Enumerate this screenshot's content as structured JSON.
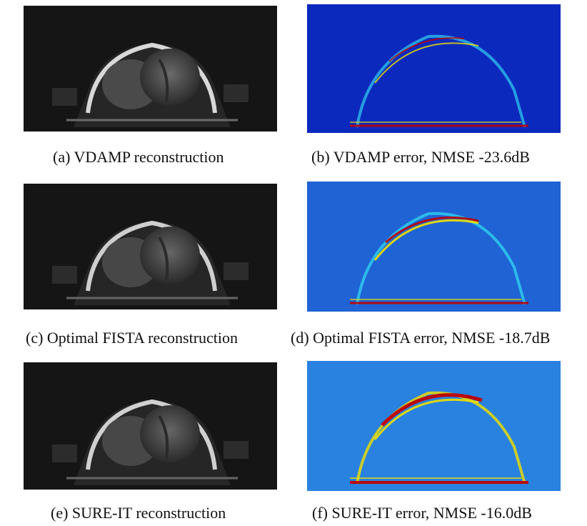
{
  "panels": [
    {
      "id": "a",
      "kind": "reconstruction",
      "caption": "(a) VDAMP reconstruction"
    },
    {
      "id": "b",
      "kind": "error-map",
      "caption": "(b) VDAMP error, NMSE -23.6dB",
      "nmse_db": -23.6
    },
    {
      "id": "c",
      "kind": "reconstruction",
      "caption": "(c) Optimal FISTA reconstruction"
    },
    {
      "id": "d",
      "kind": "error-map",
      "caption": "(d) Optimal FISTA error, NMSE -18.7dB",
      "nmse_db": -18.7
    },
    {
      "id": "e",
      "kind": "reconstruction",
      "caption": "(e) SURE-IT reconstruction"
    },
    {
      "id": "f",
      "kind": "error-map",
      "caption": "(f) SURE-IT error, NMSE -16.0dB",
      "nmse_db": -16.0
    }
  ],
  "colors": {
    "mri_background": "#151515",
    "error_background": "#1030c8",
    "error_high": "#c00000",
    "error_mid": "#f0e000",
    "error_low": "#30d0f0"
  }
}
